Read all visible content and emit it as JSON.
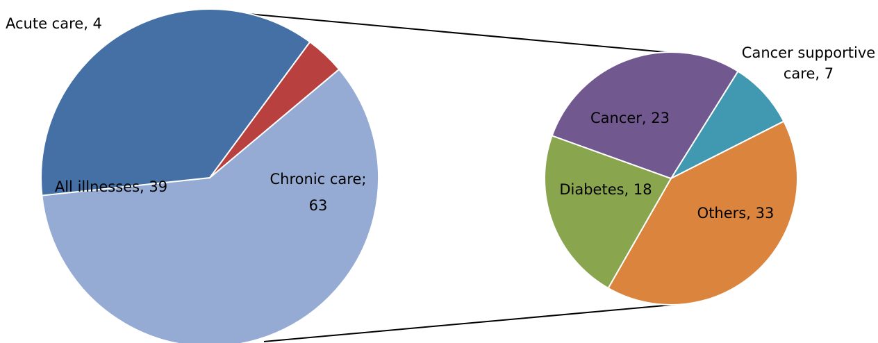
{
  "chart_data": [
    {
      "type": "pie",
      "slices": [
        {
          "label": "Chronic care; 63",
          "name": "Chronic care",
          "value": 63,
          "color": "#95abd4"
        },
        {
          "label": "All illnesses, 39",
          "name": "All illnesses",
          "value": 39,
          "color": "#4570a6"
        },
        {
          "label": "Acute care, 4",
          "name": "Acute care",
          "value": 4,
          "color": "#b8403e"
        }
      ]
    },
    {
      "type": "pie",
      "slices": [
        {
          "label": "Cancer supportive care, 7",
          "name": "Cancer supportive care",
          "value": 7,
          "color": "#4198b1"
        },
        {
          "label": "Others, 33",
          "name": "Others",
          "value": 33,
          "color": "#db843d"
        },
        {
          "label": "Diabetes, 18",
          "name": "Diabetes",
          "value": 18,
          "color": "#89a54e"
        },
        {
          "label": "Cancer, 23",
          "name": "Cancer",
          "value": 23,
          "color": "#71588f"
        }
      ]
    }
  ]
}
